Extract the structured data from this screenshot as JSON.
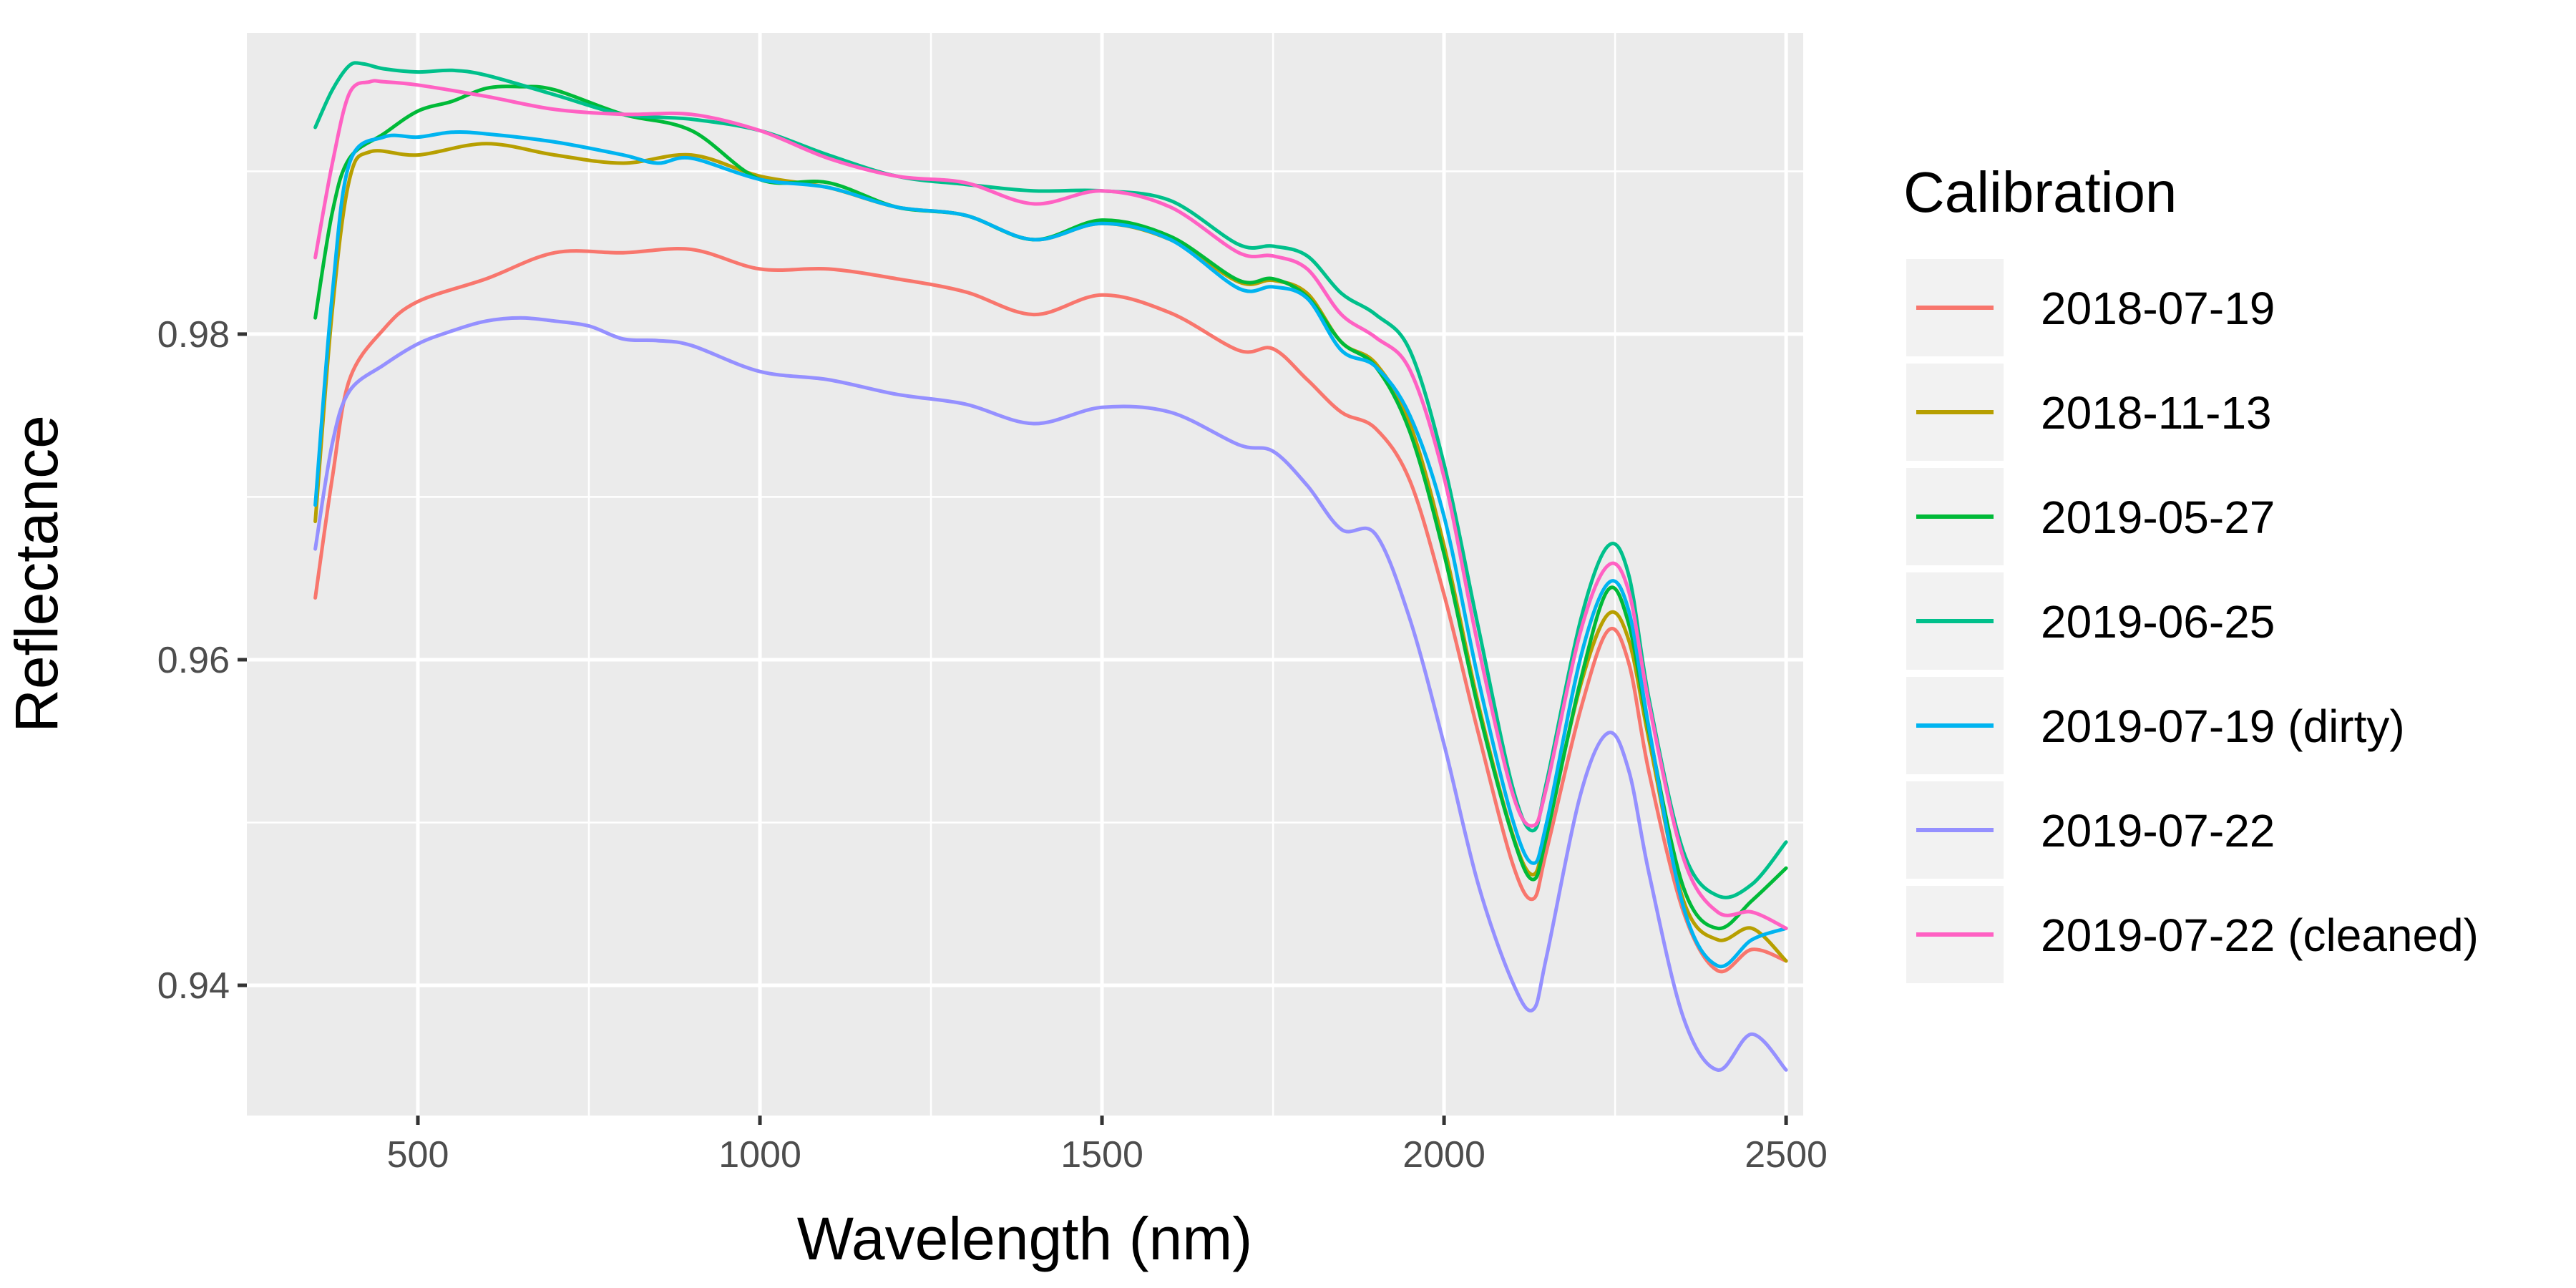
{
  "chart_data": {
    "type": "line",
    "title": "",
    "xlabel": "Wavelength (nm)",
    "ylabel": "Reflectance",
    "xlim": [
      250,
      2525
    ],
    "ylim": [
      0.932,
      0.9985
    ],
    "x_ticks": [
      500,
      1000,
      1500,
      2000,
      2500
    ],
    "x_tick_labels": [
      "500",
      "1000",
      "1500",
      "2000",
      "2500"
    ],
    "y_ticks": [
      0.94,
      0.96,
      0.98
    ],
    "y_tick_labels": [
      "0.94",
      "0.96",
      "0.98"
    ],
    "grid": true,
    "legend": {
      "title": "Calibration",
      "placement": "right"
    },
    "series": [
      {
        "name": "2018-07-19",
        "color": "#F8766D",
        "x": [
          350,
          375,
          400,
          450,
          500,
          600,
          700,
          800,
          900,
          1000,
          1100,
          1200,
          1300,
          1400,
          1500,
          1600,
          1700,
          1750,
          1800,
          1850,
          1900,
          1950,
          2000,
          2050,
          2100,
          2130,
          2150,
          2200,
          2240,
          2270,
          2300,
          2350,
          2400,
          2450,
          2500
        ],
        "y": [
          0.9638,
          0.9712,
          0.9772,
          0.9803,
          0.982,
          0.9834,
          0.985,
          0.985,
          0.9852,
          0.984,
          0.984,
          0.9834,
          0.9826,
          0.9812,
          0.9824,
          0.9813,
          0.979,
          0.9791,
          0.9772,
          0.9752,
          0.9742,
          0.971,
          0.964,
          0.9555,
          0.9475,
          0.9453,
          0.9483,
          0.957,
          0.9618,
          0.9598,
          0.953,
          0.9445,
          0.9409,
          0.9422,
          0.9415
        ]
      },
      {
        "name": "2018-11-13",
        "color": "#B79F00",
        "x": [
          350,
          375,
          400,
          430,
          500,
          600,
          700,
          800,
          900,
          1000,
          1100,
          1200,
          1300,
          1400,
          1500,
          1600,
          1700,
          1750,
          1800,
          1850,
          1900,
          1950,
          2000,
          2050,
          2100,
          2130,
          2150,
          2200,
          2240,
          2270,
          2300,
          2350,
          2400,
          2450,
          2500
        ],
        "y": [
          0.9685,
          0.9815,
          0.9895,
          0.9912,
          0.991,
          0.9917,
          0.991,
          0.9905,
          0.991,
          0.9897,
          0.989,
          0.9878,
          0.9873,
          0.9858,
          0.9868,
          0.9858,
          0.9832,
          0.9833,
          0.9825,
          0.9795,
          0.9782,
          0.9745,
          0.967,
          0.9573,
          0.9493,
          0.9468,
          0.9495,
          0.9585,
          0.9628,
          0.9612,
          0.955,
          0.9452,
          0.9428,
          0.9435,
          0.9415
        ]
      },
      {
        "name": "2019-05-27",
        "color": "#00BA38",
        "x": [
          350,
          375,
          400,
          450,
          500,
          550,
          600,
          650,
          700,
          800,
          900,
          1000,
          1100,
          1200,
          1300,
          1400,
          1500,
          1600,
          1700,
          1750,
          1800,
          1850,
          1900,
          1950,
          2000,
          2050,
          2100,
          2130,
          2150,
          2200,
          2240,
          2270,
          2300,
          2350,
          2400,
          2450,
          2500
        ],
        "y": [
          0.981,
          0.9875,
          0.9908,
          0.9923,
          0.9937,
          0.9943,
          0.9951,
          0.9952,
          0.995,
          0.9935,
          0.9925,
          0.9895,
          0.9893,
          0.9878,
          0.9873,
          0.9858,
          0.987,
          0.986,
          0.9833,
          0.9834,
          0.9823,
          0.9795,
          0.978,
          0.974,
          0.9665,
          0.957,
          0.9492,
          0.9465,
          0.9492,
          0.9588,
          0.9643,
          0.9622,
          0.9555,
          0.946,
          0.9435,
          0.9452,
          0.9472
        ]
      },
      {
        "name": "2019-06-25",
        "color": "#00C08B",
        "x": [
          350,
          375,
          400,
          420,
          450,
          500,
          550,
          600,
          700,
          800,
          900,
          1000,
          1100,
          1200,
          1300,
          1400,
          1500,
          1600,
          1700,
          1750,
          1800,
          1850,
          1900,
          1950,
          2000,
          2050,
          2100,
          2130,
          2150,
          2200,
          2240,
          2270,
          2300,
          2350,
          2400,
          2450,
          2500
        ],
        "y": [
          0.9927,
          0.995,
          0.9965,
          0.9966,
          0.9963,
          0.9961,
          0.9962,
          0.9959,
          0.9947,
          0.9935,
          0.9932,
          0.9925,
          0.991,
          0.9897,
          0.9892,
          0.9888,
          0.9888,
          0.9882,
          0.9855,
          0.9854,
          0.9848,
          0.9825,
          0.9812,
          0.979,
          0.972,
          0.962,
          0.9522,
          0.9495,
          0.9525,
          0.9625,
          0.967,
          0.9652,
          0.9575,
          0.9482,
          0.9455,
          0.9462,
          0.9488
        ]
      },
      {
        "name": "2019-07-19 (dirty)",
        "color": "#00B4F0",
        "x": [
          350,
          375,
          400,
          450,
          500,
          550,
          600,
          700,
          800,
          850,
          900,
          1000,
          1100,
          1200,
          1300,
          1400,
          1500,
          1600,
          1700,
          1750,
          1800,
          1850,
          1900,
          1950,
          2000,
          2050,
          2100,
          2130,
          2150,
          2200,
          2240,
          2270,
          2300,
          2350,
          2400,
          2450,
          2500
        ],
        "y": [
          0.9695,
          0.9825,
          0.9905,
          0.9921,
          0.9921,
          0.9924,
          0.9923,
          0.9918,
          0.991,
          0.9905,
          0.9908,
          0.9895,
          0.989,
          0.9878,
          0.9873,
          0.9858,
          0.9868,
          0.9858,
          0.9828,
          0.9829,
          0.9822,
          0.979,
          0.978,
          0.975,
          0.9688,
          0.9588,
          0.9502,
          0.9475,
          0.95,
          0.9602,
          0.9647,
          0.963,
          0.9557,
          0.9448,
          0.9412,
          0.9428,
          0.9435
        ]
      },
      {
        "name": "2019-07-22",
        "color": "#9590FF",
        "x": [
          350,
          375,
          400,
          450,
          500,
          550,
          600,
          650,
          700,
          750,
          800,
          850,
          900,
          1000,
          1100,
          1200,
          1300,
          1400,
          1500,
          1600,
          1700,
          1750,
          1800,
          1850,
          1900,
          1950,
          2000,
          2050,
          2100,
          2130,
          2150,
          2200,
          2240,
          2270,
          2300,
          2350,
          2400,
          2450,
          2500
        ],
        "y": [
          0.9668,
          0.9733,
          0.9765,
          0.9781,
          0.9794,
          0.9802,
          0.9808,
          0.981,
          0.9808,
          0.9805,
          0.9797,
          0.9796,
          0.9793,
          0.9777,
          0.9772,
          0.9763,
          0.9757,
          0.9745,
          0.9755,
          0.9752,
          0.9732,
          0.9728,
          0.9707,
          0.968,
          0.9677,
          0.9625,
          0.9548,
          0.9462,
          0.9402,
          0.9385,
          0.9418,
          0.9518,
          0.9555,
          0.9532,
          0.9468,
          0.938,
          0.9348,
          0.937,
          0.9348
        ]
      },
      {
        "name": "2019-07-22 (cleaned)",
        "color": "#FF61C3",
        "x": [
          350,
          375,
          400,
          430,
          450,
          500,
          600,
          700,
          800,
          900,
          1000,
          1100,
          1200,
          1300,
          1400,
          1500,
          1600,
          1700,
          1750,
          1800,
          1850,
          1900,
          1950,
          2000,
          2050,
          2100,
          2130,
          2150,
          2200,
          2240,
          2270,
          2300,
          2350,
          2400,
          2450,
          2500
        ],
        "y": [
          0.9847,
          0.9905,
          0.9948,
          0.9955,
          0.9955,
          0.9953,
          0.9946,
          0.9938,
          0.9935,
          0.9935,
          0.9925,
          0.9908,
          0.9897,
          0.9893,
          0.988,
          0.9888,
          0.9878,
          0.985,
          0.9848,
          0.984,
          0.9812,
          0.9798,
          0.9778,
          0.9712,
          0.9608,
          0.9518,
          0.9498,
          0.9522,
          0.9618,
          0.9658,
          0.9642,
          0.9572,
          0.9478,
          0.9445,
          0.9445,
          0.9435
        ]
      }
    ]
  }
}
